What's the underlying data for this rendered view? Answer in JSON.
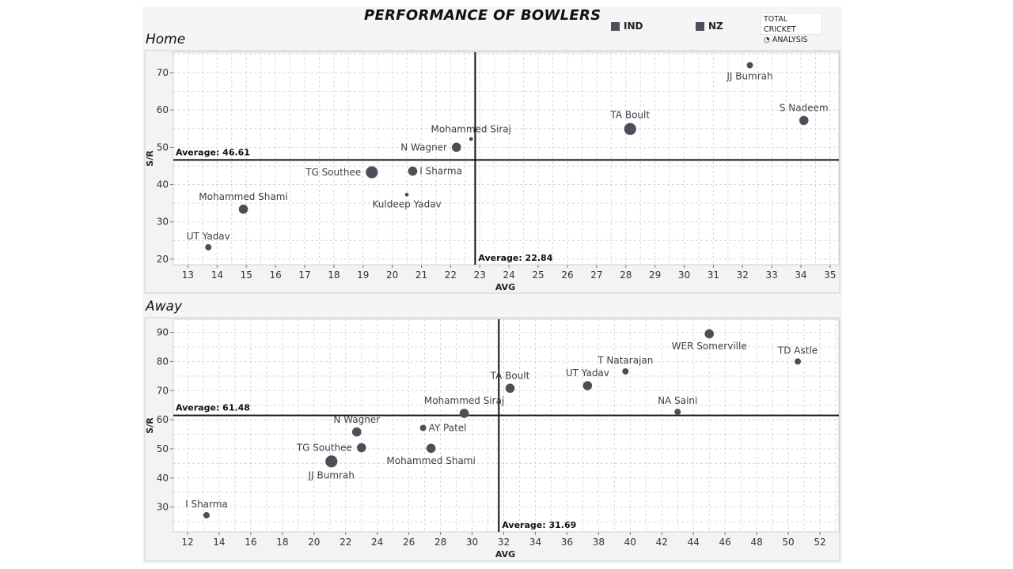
{
  "title": "PERFORMANCE OF BOWLERS",
  "legend": [
    {
      "label": "IND",
      "color": "#4b4f58"
    },
    {
      "label": "NZ",
      "color": "#4b4f58"
    }
  ],
  "logo": {
    "line1": "TOTAL CRICKET",
    "line2": "ANALYSIS"
  },
  "chart_data": [
    {
      "type": "scatter",
      "title": "Home",
      "xlabel": "AVG",
      "ylabel": "S/R",
      "xlim": [
        12.5,
        35.3
      ],
      "ylim": [
        18.5,
        75.5
      ],
      "xticks": [
        13,
        14,
        15,
        16,
        17,
        18,
        19,
        20,
        21,
        22,
        23,
        24,
        25,
        26,
        27,
        28,
        29,
        30,
        31,
        32,
        33,
        34,
        35
      ],
      "yticks": [
        20,
        30,
        40,
        50,
        60,
        70
      ],
      "grid": true,
      "ref_lines": {
        "x": {
          "value": 22.84,
          "label": "Average: 22.84"
        },
        "y": {
          "value": 46.61,
          "label": "Average: 46.61"
        }
      },
      "points": [
        {
          "name": "JJ Bumrah",
          "x": 32.25,
          "y": 72.0,
          "size": "small",
          "label_pos": "below"
        },
        {
          "name": "S Nadeem",
          "x": 34.1,
          "y": 57.2,
          "size": "medium",
          "label_pos": "above"
        },
        {
          "name": "TA Boult",
          "x": 28.15,
          "y": 54.9,
          "size": "large",
          "label_pos": "above"
        },
        {
          "name": "Mohammed Siraj",
          "x": 22.7,
          "y": 52.2,
          "size": "tiny",
          "label_pos": "above"
        },
        {
          "name": "N Wagner",
          "x": 22.2,
          "y": 50.0,
          "size": "medium",
          "label_pos": "left"
        },
        {
          "name": "TG Southee",
          "x": 19.3,
          "y": 43.3,
          "size": "large",
          "label_pos": "left"
        },
        {
          "name": "I Sharma",
          "x": 20.7,
          "y": 43.6,
          "size": "medium",
          "label_pos": "right"
        },
        {
          "name": "Kuldeep Yadav",
          "x": 20.5,
          "y": 37.3,
          "size": "tiny",
          "label_pos": "below"
        },
        {
          "name": "Mohammed Shami",
          "x": 14.9,
          "y": 33.4,
          "size": "medium",
          "label_pos": "above"
        },
        {
          "name": "UT Yadav",
          "x": 13.7,
          "y": 23.2,
          "size": "small",
          "label_pos": "above"
        }
      ]
    },
    {
      "type": "scatter",
      "title": "Away",
      "xlabel": "AVG",
      "ylabel": "S/R",
      "xlim": [
        11.1,
        53.2
      ],
      "ylim": [
        21.5,
        94.5
      ],
      "xticks": [
        12,
        14,
        16,
        18,
        20,
        22,
        24,
        26,
        28,
        30,
        32,
        34,
        36,
        38,
        40,
        42,
        44,
        46,
        48,
        50,
        52
      ],
      "yticks": [
        30,
        40,
        50,
        60,
        70,
        80,
        90
      ],
      "grid": true,
      "ref_lines": {
        "x": {
          "value": 31.69,
          "label": "Average: 31.69"
        },
        "y": {
          "value": 61.48,
          "label": "Average: 61.48"
        }
      },
      "points": [
        {
          "name": "WER Somerville",
          "x": 45.0,
          "y": 89.5,
          "size": "medium",
          "label_pos": "below"
        },
        {
          "name": "TD Astle",
          "x": 50.6,
          "y": 80.0,
          "size": "small",
          "label_pos": "above"
        },
        {
          "name": "T Natarajan",
          "x": 39.7,
          "y": 76.6,
          "size": "small",
          "label_pos": "above"
        },
        {
          "name": "UT Yadav",
          "x": 37.3,
          "y": 71.7,
          "size": "medium",
          "label_pos": "above"
        },
        {
          "name": "TA Boult",
          "x": 32.4,
          "y": 70.8,
          "size": "medium",
          "label_pos": "above"
        },
        {
          "name": "NA Saini",
          "x": 43.0,
          "y": 62.7,
          "size": "small",
          "label_pos": "above"
        },
        {
          "name": "Mohammed Siraj",
          "x": 29.5,
          "y": 62.2,
          "size": "medium",
          "label_pos": "above"
        },
        {
          "name": "N Wagner",
          "x": 22.7,
          "y": 55.8,
          "size": "medium",
          "label_pos": "above"
        },
        {
          "name": "AY Patel",
          "x": 26.9,
          "y": 57.2,
          "size": "small",
          "label_pos": "right"
        },
        {
          "name": "TG Southee",
          "x": 23.0,
          "y": 50.4,
          "size": "medium",
          "label_pos": "left"
        },
        {
          "name": "Mohammed Shami",
          "x": 27.4,
          "y": 50.2,
          "size": "medium",
          "label_pos": "below"
        },
        {
          "name": "JJ Bumrah",
          "x": 21.1,
          "y": 45.7,
          "size": "large",
          "label_pos": "below"
        },
        {
          "name": "I Sharma",
          "x": 13.2,
          "y": 27.2,
          "size": "small",
          "label_pos": "above"
        }
      ]
    }
  ]
}
